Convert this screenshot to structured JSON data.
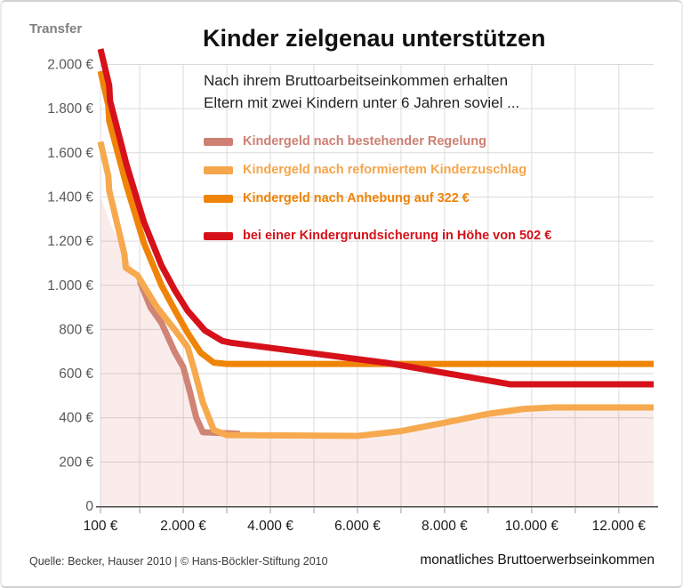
{
  "header": {
    "y_axis_title": "Transfer",
    "title": "Kinder zielgenau unterstützen",
    "subtitle_line1": "Nach ihrem Bruttoarbeitseinkommen erhalten",
    "subtitle_line2": "Eltern mit zwei Kindern unter 6 Jahren soviel ..."
  },
  "legend": {
    "items": [
      {
        "label": "Kindergeld nach bestehender Regelung",
        "color": "#cd8073"
      },
      {
        "label": "Kindergeld nach reformiertem Kinderzuschlag",
        "color": "#f5a54a"
      },
      {
        "label": "Kindergeld nach Anhebung auf 322 €",
        "color": "#ee8408"
      },
      {
        "label": "bei einer Kindergrundsicherung in Höhe von 502 €",
        "color": "#d6111a"
      }
    ]
  },
  "footer": {
    "source": "Quelle: Becker, Hauser 2010 | © Hans-Böckler-Stiftung 2010",
    "x_axis_title": "monatliches Bruttoerwerbseinkommen"
  },
  "colors": {
    "grid": "#dadada",
    "grid_vertical": "#dcdcdc",
    "axis": "#4a4a4a",
    "tick": "#9a9a9a",
    "y_tick_text": "#595959",
    "x_tick_text": "#1a1a1a",
    "area_fill": "rgba(205,70,60,0.10)"
  },
  "chart_data": {
    "type": "line",
    "title": "Kinder zielgenau unterstützen",
    "subtitle": "Nach ihrem Bruttoarbeitseinkommen erhalten Eltern mit zwei Kindern unter 6 Jahren soviel ...",
    "xlabel": "monatliches Bruttoerwerbseinkommen",
    "ylabel": "Transfer",
    "x_range": [
      100,
      12800
    ],
    "y_range": [
      0,
      2100
    ],
    "grid": true,
    "legend_position": "top-right",
    "x_axis": {
      "ticks": [
        100,
        2000,
        4000,
        6000,
        8000,
        10000,
        12000
      ],
      "tick_labels": [
        "100 €",
        "2.000 €",
        "4.000 €",
        "6.000 €",
        "8.000 €",
        "10.000 €",
        "12.000 €"
      ],
      "gridlines": [
        100,
        1000,
        2000,
        3000,
        4000,
        5000,
        6000,
        7000,
        8000,
        9000,
        10000,
        11000,
        12000
      ]
    },
    "y_axis": {
      "ticks": [
        0,
        200,
        400,
        600,
        800,
        1000,
        1200,
        1400,
        1600,
        1800,
        2000
      ],
      "tick_labels": [
        "0",
        "200 €",
        "400 €",
        "600 €",
        "800 €",
        "1.000 €",
        "1.200 €",
        "1.400 €",
        "1.600 €",
        "1.800 €",
        "2.000 €"
      ],
      "gridlines": [
        200,
        400,
        600,
        800,
        1000,
        1200,
        1400,
        1600,
        1800,
        2000
      ]
    },
    "area_under_first_series": {
      "note": "light pink area under the 'bestehende Regelung' curve",
      "points": [
        [
          100,
          1400
        ],
        [
          350,
          1270
        ],
        [
          700,
          1130
        ],
        [
          1000,
          1020
        ],
        [
          1250,
          900
        ],
        [
          1500,
          830
        ],
        [
          1800,
          700
        ],
        [
          2000,
          630
        ],
        [
          2150,
          520
        ],
        [
          2300,
          400
        ],
        [
          2450,
          335
        ],
        [
          3300,
          328
        ],
        [
          6000,
          320
        ],
        [
          7400,
          352
        ],
        [
          8800,
          412
        ],
        [
          9800,
          440
        ],
        [
          10500,
          446
        ],
        [
          12800,
          446
        ]
      ]
    },
    "series": [
      {
        "name": "Kindergeld nach bestehender Regelung",
        "color": "#cf8475",
        "points": [
          [
            1000,
            1020
          ],
          [
            1250,
            900
          ],
          [
            1500,
            830
          ],
          [
            1800,
            700
          ],
          [
            2000,
            630
          ],
          [
            2150,
            520
          ],
          [
            2300,
            400
          ],
          [
            2450,
            335
          ],
          [
            3300,
            328
          ]
        ]
      },
      {
        "name": "Kindergeld nach reformiertem Kinderzuschlag",
        "color": "#f6a94e",
        "points": [
          [
            100,
            1650
          ],
          [
            280,
            1495
          ],
          [
            300,
            1430
          ],
          [
            650,
            1140
          ],
          [
            680,
            1080
          ],
          [
            950,
            1045
          ],
          [
            1150,
            980
          ],
          [
            1400,
            900
          ],
          [
            1800,
            800
          ],
          [
            2100,
            720
          ],
          [
            2250,
            620
          ],
          [
            2450,
            470
          ],
          [
            2700,
            345
          ],
          [
            3000,
            322
          ],
          [
            6000,
            318
          ],
          [
            7000,
            340
          ],
          [
            8000,
            378
          ],
          [
            9000,
            418
          ],
          [
            9800,
            440
          ],
          [
            10500,
            447
          ],
          [
            12800,
            447
          ]
        ]
      },
      {
        "name": "Kindergeld nach Anhebung auf 322 €",
        "color": "#ef8408",
        "points": [
          [
            100,
            1970
          ],
          [
            280,
            1815
          ],
          [
            300,
            1745
          ],
          [
            700,
            1450
          ],
          [
            1100,
            1190
          ],
          [
            1500,
            1000
          ],
          [
            1800,
            890
          ],
          [
            2100,
            785
          ],
          [
            2400,
            695
          ],
          [
            2700,
            650
          ],
          [
            3000,
            644
          ],
          [
            12800,
            644
          ]
        ]
      },
      {
        "name": "bei einer Kindergrundsicherung in Höhe von 502 €",
        "color": "#d6111a",
        "points": [
          [
            100,
            2070
          ],
          [
            300,
            1905
          ],
          [
            320,
            1835
          ],
          [
            700,
            1545
          ],
          [
            1100,
            1285
          ],
          [
            1500,
            1090
          ],
          [
            1800,
            980
          ],
          [
            2100,
            885
          ],
          [
            2500,
            795
          ],
          [
            2900,
            748
          ],
          [
            3100,
            740
          ],
          [
            6700,
            648
          ],
          [
            9500,
            552
          ],
          [
            12800,
            552
          ]
        ]
      }
    ]
  }
}
